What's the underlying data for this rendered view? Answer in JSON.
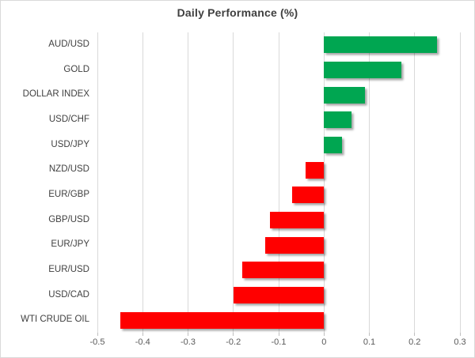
{
  "title": "Daily Performance (%)",
  "chart_data": {
    "type": "bar",
    "orientation": "horizontal",
    "title": "Daily Performance (%)",
    "xlabel": "",
    "ylabel": "",
    "categories": [
      "AUD/USD",
      "GOLD",
      "DOLLAR INDEX",
      "USD/CHF",
      "USD/JPY",
      "NZD/USD",
      "EUR/GBP",
      "GBP/USD",
      "EUR/JPY",
      "EUR/USD",
      "USD/CAD",
      "WTI CRUDE OIL"
    ],
    "values": [
      0.25,
      0.17,
      0.09,
      0.06,
      0.04,
      -0.04,
      -0.07,
      -0.12,
      -0.13,
      -0.18,
      -0.2,
      -0.45
    ],
    "xlim": [
      -0.5,
      0.3
    ],
    "xticks": [
      -0.5,
      -0.4,
      -0.3,
      -0.2,
      -0.1,
      0,
      0.1,
      0.2,
      0.3
    ],
    "xtick_labels": [
      "-0.5",
      "-0.4",
      "-0.3",
      "-0.2",
      "-0.1",
      "0",
      "0.1",
      "0.2",
      "0.3"
    ],
    "grid": "vertical",
    "legend": "none",
    "positive_color": "#00A651",
    "negative_color": "#FF0000",
    "gridline_color": "#D9D9D9"
  }
}
